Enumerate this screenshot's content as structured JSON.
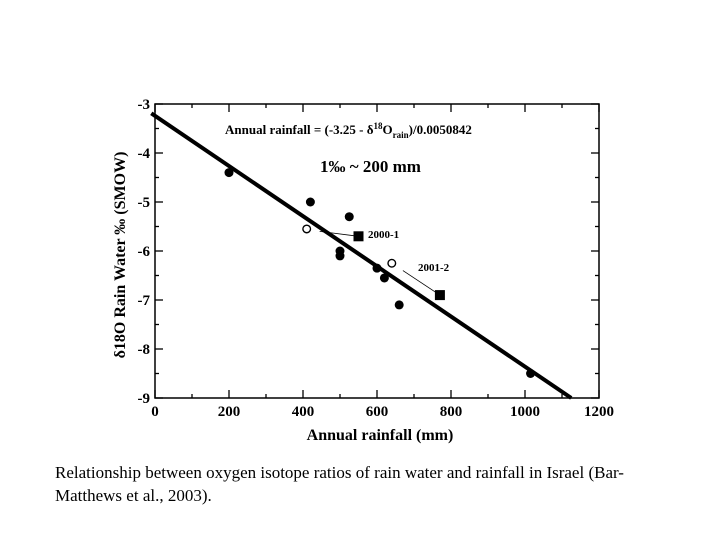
{
  "chart_data": {
    "type": "scatter",
    "title": "",
    "xlabel": "Annual rainfall (mm)",
    "ylabel": "δ18O Rain Water ‰ (SMOW)",
    "xlim": [
      0,
      1200
    ],
    "ylim": [
      -9,
      -3
    ],
    "x_ticks": [
      0,
      200,
      400,
      600,
      800,
      1000,
      1200
    ],
    "y_ticks": [
      -3,
      -4,
      -5,
      -6,
      -7,
      -8,
      -9
    ],
    "grid": false,
    "series": [
      {
        "marker": "filled-circle",
        "points": [
          {
            "x": 200,
            "y": -4.4
          },
          {
            "x": 420,
            "y": -5.0
          },
          {
            "x": 500,
            "y": -6.0
          },
          {
            "x": 500,
            "y": -6.1
          },
          {
            "x": 525,
            "y": -5.3
          },
          {
            "x": 600,
            "y": -6.35
          },
          {
            "x": 620,
            "y": -6.55
          },
          {
            "x": 660,
            "y": -7.1
          },
          {
            "x": 1015,
            "y": -8.5
          }
        ]
      },
      {
        "marker": "open-circle",
        "points": [
          {
            "x": 410,
            "y": -5.55
          },
          {
            "x": 640,
            "y": -6.25
          }
        ]
      },
      {
        "marker": "filled-square",
        "points": [
          {
            "x": 550,
            "y": -5.7
          },
          {
            "x": 770,
            "y": -6.9
          }
        ]
      }
    ],
    "regression": {
      "x": [
        -10,
        1125
      ],
      "y": [
        -3.19,
        -9.0
      ]
    },
    "annotations": {
      "equation_prefix": "Annual rainfall = (-3.25 - δ",
      "equation_sup": "18",
      "equation_mid": "O",
      "equation_sub": "rain",
      "equation_suffix": ")/0.0050842",
      "scale_note": "1‰ ~ 200 mm",
      "label_2000": "2000-1",
      "label_2001": "2001-2"
    },
    "leaders": [
      {
        "from": [
          550,
          -5.7
        ],
        "to": [
          445,
          -5.6
        ]
      },
      {
        "from": [
          770,
          -6.9
        ],
        "to": [
          670,
          -6.4
        ]
      }
    ]
  },
  "caption": "Relationship between oxygen isotope ratios of rain water and rainfall in Israel (Bar-Matthews et al., 2003)."
}
